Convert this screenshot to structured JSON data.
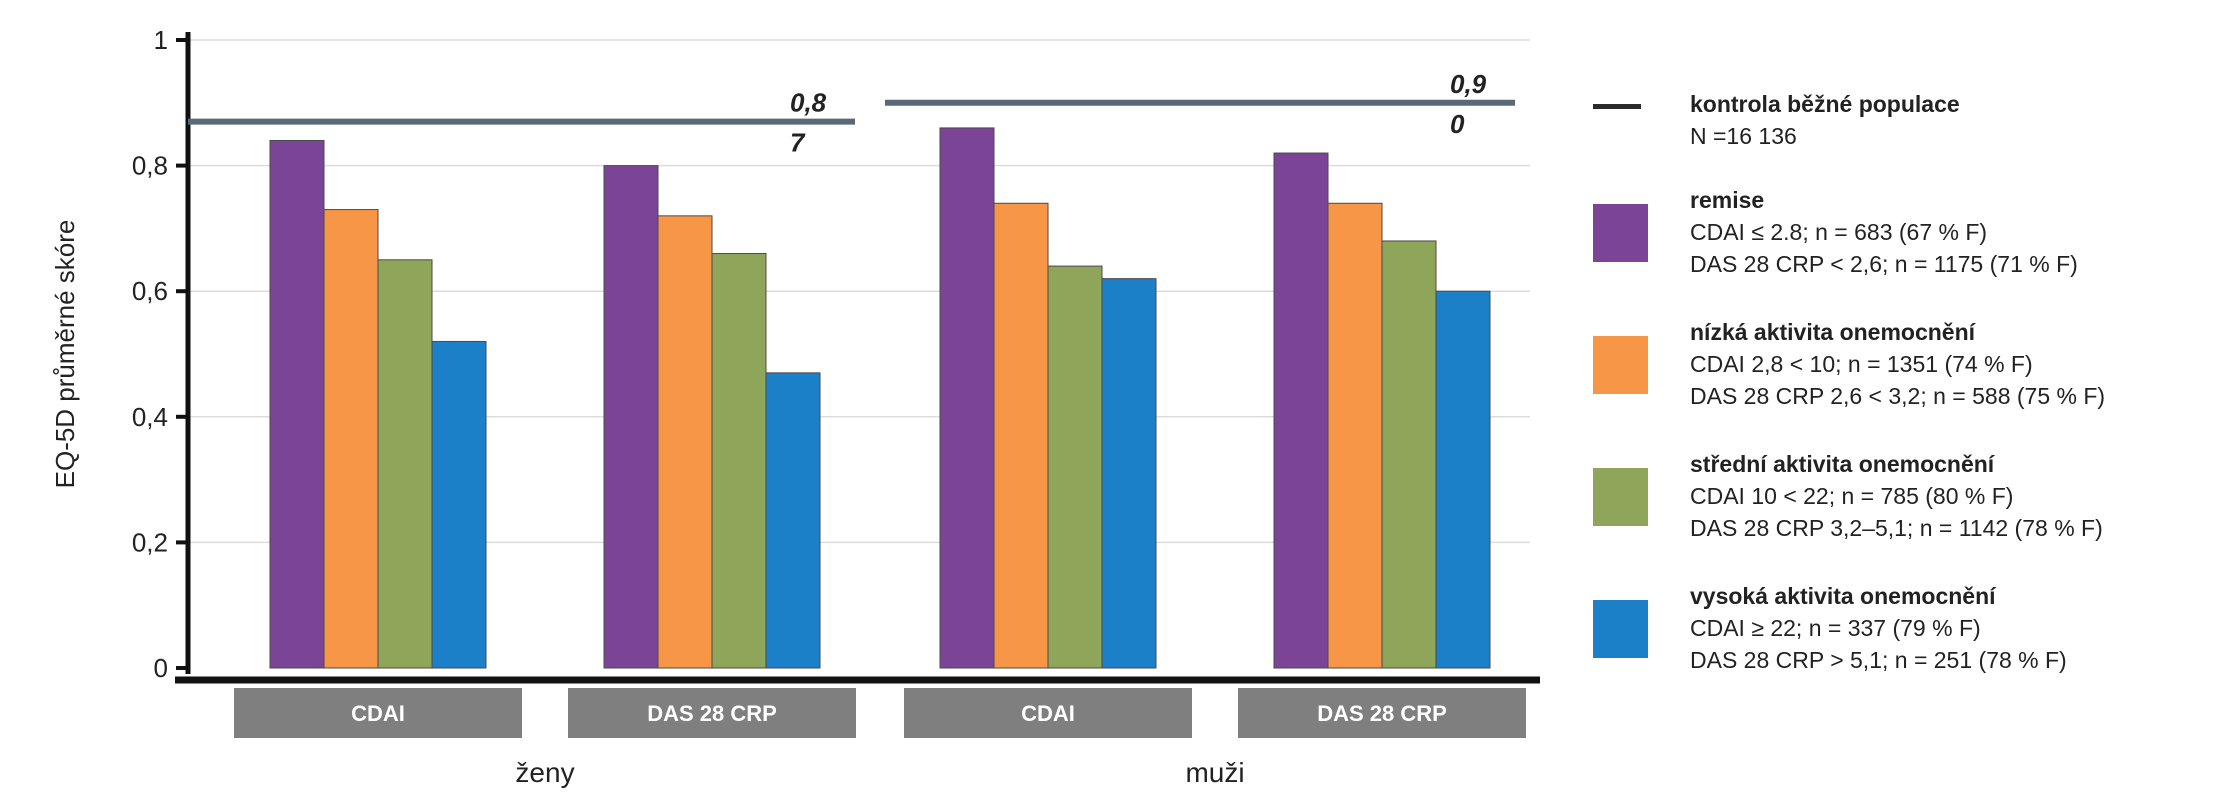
{
  "chart_data": {
    "type": "bar",
    "ylabel": "EQ-5D průměrné skóre",
    "ylim": [
      0,
      1
    ],
    "yticks": [
      "0",
      "0,2",
      "0,4",
      "0,6",
      "0,8",
      "1"
    ],
    "grid": true,
    "legend_position": "right",
    "groups": [
      {
        "label": "ženy",
        "categories": [
          "CDAI",
          "DAS 28 CRP"
        ],
        "reference": {
          "value": 0.87,
          "label_line1": "0,8",
          "label_line2": "7"
        }
      },
      {
        "label": "muži",
        "categories": [
          "CDAI",
          "DAS 28 CRP"
        ],
        "reference": {
          "value": 0.9,
          "label_line1": "0,9",
          "label_line2": "0"
        }
      }
    ],
    "series": [
      {
        "name": "remise",
        "color": "#7b4496",
        "values": [
          0.84,
          0.8,
          0.86,
          0.82
        ]
      },
      {
        "name": "nízká aktivita onemocnění",
        "color": "#f79646",
        "values": [
          0.73,
          0.72,
          0.74,
          0.74
        ]
      },
      {
        "name": "střední aktivita onemocnění",
        "color": "#8ea55a",
        "values": [
          0.65,
          0.66,
          0.64,
          0.68
        ]
      },
      {
        "name": "vysoká aktivita onemocnění",
        "color": "#1c80c8",
        "values": [
          0.52,
          0.47,
          0.62,
          0.6
        ]
      }
    ],
    "reference_color": "#5a6878",
    "category_box_color": "#7f7f7f"
  },
  "legend": {
    "reference": {
      "title": "kontrola běžné populace",
      "line1": "N =16 136"
    },
    "items": [
      {
        "title": "remise",
        "line1": "CDAI ≤ 2.8; n = 683 (67 % F)",
        "line2": "DAS 28 CRP < 2,6; n = 1175 (71 % F)",
        "color": "#7b4496"
      },
      {
        "title": "nízká aktivita onemocnění",
        "line1": "CDAI 2,8 < 10; n = 1351 (74 % F)",
        "line2": "DAS 28 CRP 2,6 < 3,2; n = 588 (75 % F)",
        "color": "#f79646"
      },
      {
        "title": "střední aktivita onemocnění",
        "line1": "CDAI 10 < 22; n = 785 (80 % F)",
        "line2": "DAS 28 CRP 3,2–5,1; n = 1142 (78 % F)",
        "color": "#8ea55a"
      },
      {
        "title": "vysoká aktivita onemocnění",
        "line1": "CDAI ≥ 22; n = 337 (79 % F)",
        "line2": "DAS 28 CRP > 5,1; n = 251 (78 % F)",
        "color": "#1c80c8"
      }
    ]
  }
}
